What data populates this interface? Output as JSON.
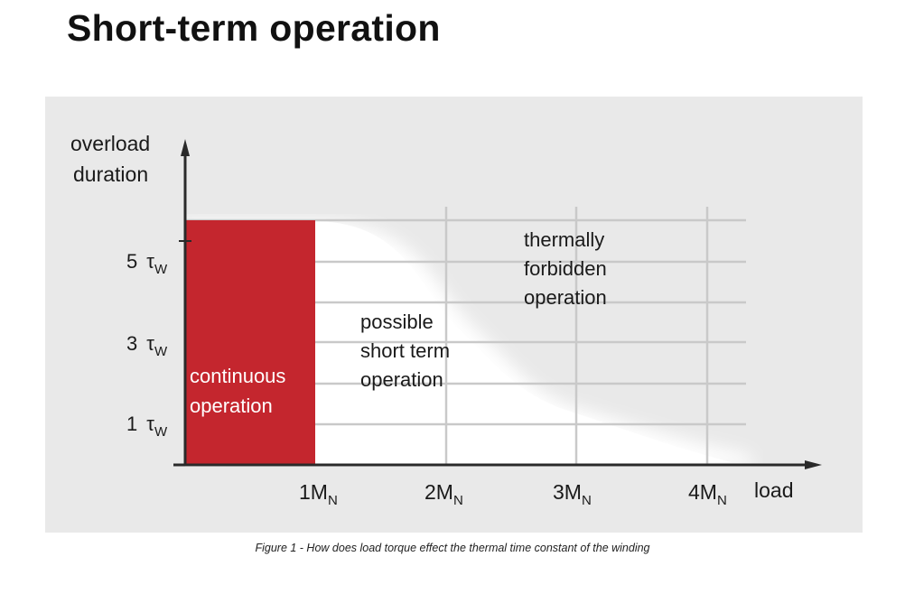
{
  "page": {
    "title": "Short-term operation",
    "caption": "Figure 1 - How does load torque effect the thermal time constant of the winding"
  },
  "diagram": {
    "y_axis_label_line1": "overload",
    "y_axis_label_line2": "duration",
    "x_axis_label": "load",
    "y_ticks": [
      {
        "value": "5",
        "symbol": "τ",
        "subscript": "W"
      },
      {
        "value": "3",
        "symbol": "τ",
        "subscript": "W"
      },
      {
        "value": "1",
        "symbol": "τ",
        "subscript": "W"
      }
    ],
    "x_ticks": [
      {
        "value": "1M",
        "subscript": "N"
      },
      {
        "value": "2M",
        "subscript": "N"
      },
      {
        "value": "3M",
        "subscript": "N"
      },
      {
        "value": "4M",
        "subscript": "N"
      }
    ],
    "regions": {
      "continuous_line1": "continuous",
      "continuous_line2": "operation",
      "short_term_line1": "possible",
      "short_term_line2": "short term",
      "short_term_line3": "operation",
      "forbidden_line1": "thermally",
      "forbidden_line2": "forbidden",
      "forbidden_line3": "operation"
    },
    "colors": {
      "continuous_fill": "#c4262e",
      "panel_background": "#e9e9e9",
      "short_term_fill": "#ffffff"
    }
  }
}
